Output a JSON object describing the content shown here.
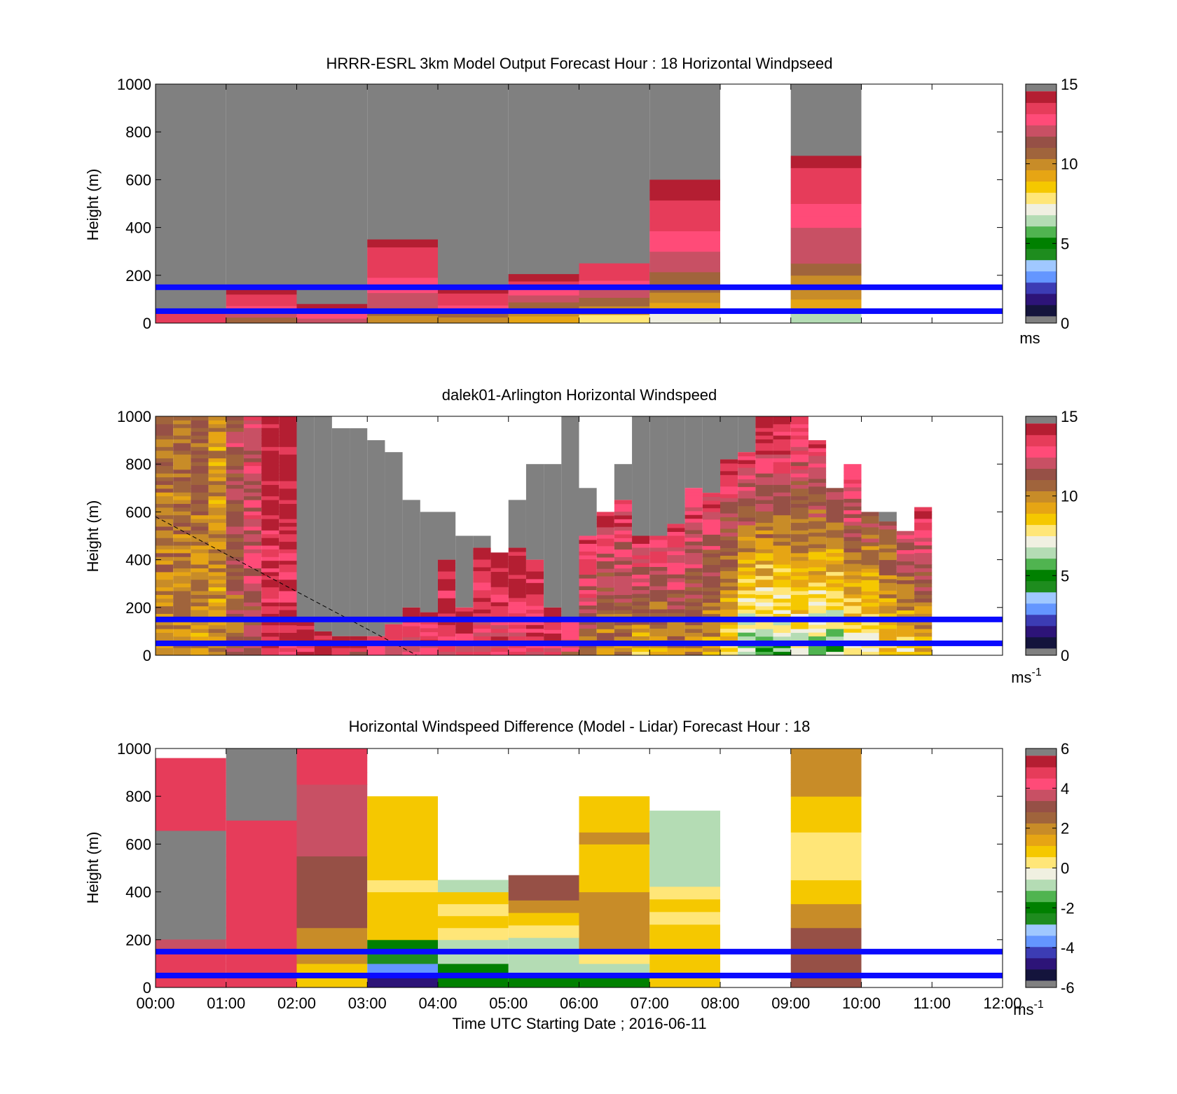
{
  "colors": {
    "speed_scale": [
      "#14143c",
      "#2d1478",
      "#3c3cb4",
      "#6496ff",
      "#a0c8ff",
      "#1e8c1e",
      "#008000",
      "#50b450",
      "#b4dcb4",
      "#f0f0e1",
      "#ffe678",
      "#f5c800",
      "#e6a514",
      "#c88c28",
      "#a0643c",
      "#965046",
      "#c85064",
      "#ff4b78",
      "#e63c5a",
      "#b41e32"
    ],
    "missing": "#808080",
    "empty": "#ffffff",
    "band": "#0a0aff"
  },
  "time_axis": {
    "ticks": [
      "00:00",
      "01:00",
      "02:00",
      "03:00",
      "04:00",
      "05:00",
      "06:00",
      "07:00",
      "08:00",
      "09:00",
      "10:00",
      "11:00",
      "12:00"
    ],
    "label": "Time UTC  Starting Date ; 2016-06-11"
  },
  "height_axis": {
    "label": "Height (m)",
    "ticks": [
      "0",
      "200",
      "400",
      "600",
      "800",
      "1000"
    ]
  },
  "panels": [
    {
      "title": "HRRR-ESRL 3km Model Output   Forecast Hour : 18 Horizontal Windpseed",
      "colorbar_ticks": [
        "0",
        "5",
        "10",
        "15"
      ],
      "colorbar_unit": "ms",
      "colorbar_unit_sup": ""
    },
    {
      "title": "dalek01-Arlington  Horizontal Windspeed",
      "colorbar_ticks": [
        "0",
        "5",
        "10",
        "15"
      ],
      "colorbar_unit": "ms",
      "colorbar_unit_sup": "-1"
    },
    {
      "title": "Horizontal Windspeed Difference (Model - Lidar) Forecast Hour : 18",
      "colorbar_ticks": [
        "-6",
        "-4",
        "-2",
        "0",
        "2",
        "4",
        "6"
      ],
      "colorbar_unit": "ms",
      "colorbar_unit_sup": "-1"
    }
  ],
  "chart_data": [
    {
      "type": "heatmap",
      "title": "HRRR-ESRL 3km Model Output   Forecast Hour : 18 Horizontal Windpseed",
      "xlabel": "",
      "ylabel": "Height (m)",
      "x_range_hours": [
        0,
        12
      ],
      "ylim": [
        0,
        1000
      ],
      "clim": [
        0,
        15
      ],
      "colorbar_unit": "ms",
      "columns": [
        {
          "hour": 0,
          "top_m": 1000,
          "data_top_m": 55,
          "profile": [
            14,
            14,
            14,
            13
          ]
        },
        {
          "hour": 1,
          "top_m": 1000,
          "data_top_m": 145,
          "profile": [
            11,
            12,
            13,
            14,
            14,
            15
          ]
        },
        {
          "hour": 2,
          "top_m": 1000,
          "data_top_m": 80,
          "profile": [
            12,
            13,
            14,
            15
          ]
        },
        {
          "hour": 3,
          "top_m": 1000,
          "data_top_m": 350,
          "profile": [
            10,
            11,
            12,
            12,
            13,
            13,
            14,
            14,
            14,
            14,
            15
          ]
        },
        {
          "hour": 4,
          "top_m": 1000,
          "data_top_m": 150,
          "profile": [
            10,
            11,
            13,
            14,
            14,
            15
          ]
        },
        {
          "hour": 5,
          "top_m": 1000,
          "data_top_m": 205,
          "profile": [
            9,
            10,
            11,
            12,
            13,
            14,
            15
          ]
        },
        {
          "hour": 6,
          "top_m": 1000,
          "data_top_m": 250,
          "profile": [
            8,
            10,
            11,
            12,
            13,
            14,
            14
          ]
        },
        {
          "hour": 7,
          "top_m": 1000,
          "data_top_m": 600,
          "profile": [
            7,
            9,
            10,
            11,
            11,
            12,
            12,
            13,
            13,
            14,
            14,
            14,
            15,
            15
          ]
        },
        {
          "hour": 8,
          "top_m": null,
          "data_top_m": null,
          "profile": []
        },
        {
          "hour": 9,
          "top_m": 1000,
          "data_top_m": 700,
          "profile": [
            6,
            9,
            10,
            10,
            11,
            12,
            12,
            12,
            13,
            13,
            14,
            14,
            14,
            15
          ]
        },
        {
          "hour": 10,
          "top_m": null,
          "data_top_m": null,
          "profile": []
        },
        {
          "hour": 11,
          "top_m": null,
          "data_top_m": null,
          "profile": []
        }
      ],
      "reference_lines_m": [
        50,
        150
      ]
    },
    {
      "type": "heatmap",
      "title": "dalek01-Arlington  Horizontal Windspeed",
      "xlabel": "",
      "ylabel": "Height (m)",
      "x_range_hours": [
        0,
        12
      ],
      "ylim": [
        0,
        1000
      ],
      "clim": [
        0,
        15
      ],
      "colorbar_unit": "ms-1",
      "columns_per_hour": 4,
      "columns": [
        {
          "t": 0.0,
          "data_top_m": 1000,
          "gray_top_m": 1000,
          "base": 10,
          "top": 11
        },
        {
          "t": 0.25,
          "data_top_m": 1000,
          "gray_top_m": 1000,
          "base": 10,
          "top": 11
        },
        {
          "t": 0.5,
          "data_top_m": 1000,
          "gray_top_m": 1000,
          "base": 10,
          "top": 11
        },
        {
          "t": 0.75,
          "data_top_m": 1000,
          "gray_top_m": 1000,
          "base": 10,
          "top": 10
        },
        {
          "t": 1.0,
          "data_top_m": 1000,
          "gray_top_m": 1000,
          "base": 11,
          "top": 12
        },
        {
          "t": 1.25,
          "data_top_m": 1000,
          "gray_top_m": 1000,
          "base": 12,
          "top": 13
        },
        {
          "t": 1.5,
          "data_top_m": 1000,
          "gray_top_m": 1000,
          "base": 14,
          "top": 15
        },
        {
          "t": 1.75,
          "data_top_m": 1000,
          "gray_top_m": 1000,
          "base": 14,
          "top": 15
        },
        {
          "t": 2.0,
          "data_top_m": 140,
          "gray_top_m": 1000,
          "base": 14,
          "top": 15
        },
        {
          "t": 2.25,
          "data_top_m": 100,
          "gray_top_m": 1000,
          "base": 14,
          "top": 15
        },
        {
          "t": 2.5,
          "data_top_m": 80,
          "gray_top_m": 950,
          "base": 13,
          "top": 15
        },
        {
          "t": 2.75,
          "data_top_m": 80,
          "gray_top_m": 950,
          "base": 13,
          "top": 15
        },
        {
          "t": 3.0,
          "data_top_m": 80,
          "gray_top_m": 900,
          "base": 13,
          "top": 15
        },
        {
          "t": 3.25,
          "data_top_m": 130,
          "gray_top_m": 850,
          "base": 13,
          "top": 15
        },
        {
          "t": 3.5,
          "data_top_m": 200,
          "gray_top_m": 650,
          "base": 13,
          "top": 15
        },
        {
          "t": 3.75,
          "data_top_m": 180,
          "gray_top_m": 600,
          "base": 13,
          "top": 15
        },
        {
          "t": 4.0,
          "data_top_m": 400,
          "gray_top_m": 600,
          "base": 13,
          "top": 15
        },
        {
          "t": 4.25,
          "data_top_m": 200,
          "gray_top_m": 500,
          "base": 13,
          "top": 15
        },
        {
          "t": 4.5,
          "data_top_m": 450,
          "gray_top_m": 500,
          "base": 13,
          "top": 15
        },
        {
          "t": 4.75,
          "data_top_m": 430,
          "gray_top_m": 430,
          "base": 13,
          "top": 15
        },
        {
          "t": 5.0,
          "data_top_m": 450,
          "gray_top_m": 650,
          "base": 13,
          "top": 15
        },
        {
          "t": 5.25,
          "data_top_m": 400,
          "gray_top_m": 800,
          "base": 13,
          "top": 15
        },
        {
          "t": 5.5,
          "data_top_m": 200,
          "gray_top_m": 800,
          "base": 13,
          "top": 15
        },
        {
          "t": 5.75,
          "data_top_m": 150,
          "gray_top_m": 1000,
          "base": 12,
          "top": 14
        },
        {
          "t": 6.0,
          "data_top_m": 500,
          "gray_top_m": 700,
          "base": 11,
          "top": 14
        },
        {
          "t": 6.25,
          "data_top_m": 600,
          "gray_top_m": 600,
          "base": 10,
          "top": 14
        },
        {
          "t": 6.5,
          "data_top_m": 650,
          "gray_top_m": 800,
          "base": 10,
          "top": 14
        },
        {
          "t": 6.75,
          "data_top_m": 500,
          "gray_top_m": 1000,
          "base": 9,
          "top": 14
        },
        {
          "t": 7.0,
          "data_top_m": 500,
          "gray_top_m": 1000,
          "base": 9,
          "top": 14
        },
        {
          "t": 7.25,
          "data_top_m": 550,
          "gray_top_m": 1000,
          "base": 10,
          "top": 14
        },
        {
          "t": 7.5,
          "data_top_m": 700,
          "gray_top_m": 1000,
          "base": 10,
          "top": 14
        },
        {
          "t": 7.75,
          "data_top_m": 680,
          "gray_top_m": 1000,
          "base": 9,
          "top": 14
        },
        {
          "t": 8.0,
          "data_top_m": 820,
          "gray_top_m": 1000,
          "base": 8,
          "top": 14
        },
        {
          "t": 8.25,
          "data_top_m": 850,
          "gray_top_m": 1000,
          "base": 6,
          "top": 14
        },
        {
          "t": 8.5,
          "data_top_m": 1000,
          "gray_top_m": 1000,
          "base": 6,
          "top": 15
        },
        {
          "t": 8.75,
          "data_top_m": 1000,
          "gray_top_m": 1000,
          "base": 6,
          "top": 15
        },
        {
          "t": 9.0,
          "data_top_m": 1000,
          "gray_top_m": 1000,
          "base": 7,
          "top": 14
        },
        {
          "t": 9.25,
          "data_top_m": 900,
          "gray_top_m": 900,
          "base": 6,
          "top": 14
        },
        {
          "t": 9.5,
          "data_top_m": 700,
          "gray_top_m": 700,
          "base": 6,
          "top": 12
        },
        {
          "t": 9.75,
          "data_top_m": 800,
          "gray_top_m": 800,
          "base": 7,
          "top": 14
        },
        {
          "t": 10.0,
          "data_top_m": 600,
          "gray_top_m": 600,
          "base": 7,
          "top": 12
        },
        {
          "t": 10.25,
          "data_top_m": 560,
          "gray_top_m": 600,
          "base": 8,
          "top": 12
        },
        {
          "t": 10.5,
          "data_top_m": 520,
          "gray_top_m": 520,
          "base": 8,
          "top": 13
        },
        {
          "t": 10.75,
          "data_top_m": 620,
          "gray_top_m": 620,
          "base": 9,
          "top": 14
        }
      ],
      "reference_lines_m": [
        50,
        150
      ],
      "dashed_line": {
        "from": {
          "hour": 0.0,
          "m": 580
        },
        "to": {
          "hour": 3.7,
          "m": 0
        }
      }
    },
    {
      "type": "heatmap",
      "title": "Horizontal Windspeed Difference (Model - Lidar) Forecast Hour : 18",
      "xlabel": "Time UTC  Starting Date ; 2016-06-11",
      "ylabel": "Height (m)",
      "x_range_hours": [
        0,
        12
      ],
      "ylim": [
        0,
        1000
      ],
      "clim": [
        -6,
        6
      ],
      "colorbar_unit": "ms-1",
      "columns": [
        {
          "hour": 0,
          "data_top_m": 960,
          "profile": [
            5,
            5,
            5,
            4,
            6,
            6,
            6,
            6,
            6,
            6,
            6,
            6,
            6,
            5,
            5,
            5,
            5,
            5,
            5
          ]
        },
        {
          "hour": 1,
          "data_top_m": 1000,
          "profile": [
            5,
            5,
            5,
            5,
            5,
            5,
            5,
            5,
            5,
            5,
            5,
            5,
            5,
            5,
            6,
            6,
            6,
            6,
            6,
            6
          ]
        },
        {
          "hour": 2,
          "data_top_m": 1000,
          "profile": [
            1,
            1,
            2,
            2,
            2,
            3,
            3,
            3,
            3,
            3,
            3,
            4,
            4,
            4,
            4,
            4,
            4,
            5,
            5,
            5
          ]
        },
        {
          "hour": 3,
          "data_top_m": 800,
          "profile": [
            -5,
            -4,
            -3,
            -2,
            1,
            1,
            1,
            1,
            0,
            1,
            1,
            1,
            1,
            1,
            1,
            1
          ]
        },
        {
          "hour": 4,
          "data_top_m": 450,
          "profile": [
            -2,
            -2,
            -1,
            -1,
            0,
            1,
            0,
            1,
            -1
          ]
        },
        {
          "hour": 5,
          "data_top_m": 470,
          "profile": [
            -2,
            -1,
            -1,
            -1,
            0,
            1,
            2,
            3,
            3
          ]
        },
        {
          "hour": 6,
          "data_top_m": 800,
          "profile": [
            -2,
            -1,
            0,
            2,
            2,
            2,
            2,
            2,
            1,
            1,
            1,
            1,
            2,
            1,
            1,
            1
          ]
        },
        {
          "hour": 7,
          "data_top_m": 740,
          "profile": [
            1,
            1,
            1,
            1,
            1,
            0,
            1,
            0,
            -1,
            -1,
            -1,
            -1,
            -1,
            -1
          ]
        },
        {
          "hour": 8,
          "data_top_m": null,
          "profile": []
        },
        {
          "hour": 9,
          "data_top_m": 1000,
          "profile": [
            3,
            3,
            3,
            3,
            3,
            2,
            2,
            1,
            1,
            0,
            0,
            0,
            0,
            1,
            1,
            1,
            2,
            2,
            2,
            2
          ]
        },
        {
          "hour": 10,
          "data_top_m": null,
          "profile": []
        },
        {
          "hour": 11,
          "data_top_m": null,
          "profile": []
        }
      ],
      "reference_lines_m": [
        50,
        150
      ]
    }
  ]
}
